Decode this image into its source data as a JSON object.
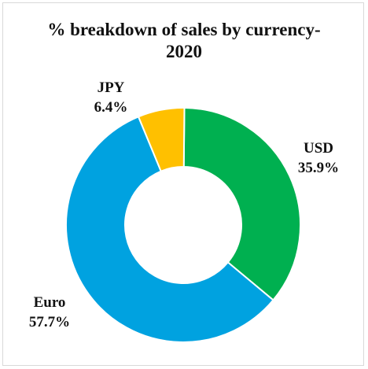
{
  "chart_data": {
    "type": "pie",
    "variant": "donut",
    "title": "% breakdown of sales by currency-",
    "title_line2": "2020",
    "categories": [
      "USD",
      "Euro",
      "JPY"
    ],
    "values": [
      35.9,
      57.7,
      6.4
    ],
    "labels": {
      "USD": {
        "name": "USD",
        "value": "35.9%"
      },
      "Euro": {
        "name": "Euro",
        "value": "57.7%"
      },
      "JPY": {
        "name": "JPY",
        "value": "6.4%"
      }
    },
    "colors": {
      "USD": "#00b050",
      "Euro": "#00a2e0",
      "JPY": "#ffc000"
    },
    "start": "top, clockwise",
    "legend": "none",
    "separator_color": "#ffffff"
  }
}
